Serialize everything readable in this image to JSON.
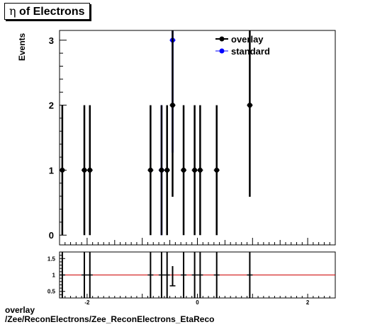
{
  "title": {
    "prefix": "η",
    "text": " of Electrons"
  },
  "y_axis_label": "Events",
  "footer": {
    "line1": "overlay",
    "line2": "/Zee/ReconElectrons/Zee_ReconElectrons_EtaReco"
  },
  "colors": {
    "overlay": "#000000",
    "standard": "#0000ff",
    "ratio_line": "#cc0000"
  },
  "chart_data": [
    {
      "type": "scatter",
      "xlabel": "",
      "ylabel": "Events",
      "xlim": [
        -2.5,
        2.5
      ],
      "ylim": [
        -0.15,
        3.15
      ],
      "x_ticks": [],
      "y_ticks": [
        "0",
        "1",
        "2",
        "3"
      ],
      "legend": {
        "placement": "top-right",
        "entries": [
          "overlay",
          "standard"
        ]
      },
      "series": [
        {
          "name": "overlay",
          "x": [
            -2.45,
            -2.05,
            -1.95,
            -0.85,
            -0.65,
            -0.55,
            -0.45,
            -0.25,
            -0.05,
            0.05,
            0.35,
            0.95
          ],
          "y": [
            1,
            1,
            1,
            1,
            1,
            1,
            2,
            1,
            1,
            1,
            1,
            2
          ],
          "err": [
            1,
            1,
            1,
            1,
            1,
            1,
            1.41,
            1,
            1,
            1,
            1,
            1.41
          ]
        },
        {
          "name": "standard",
          "x": [
            -0.65,
            -0.45
          ],
          "y": [
            1,
            3
          ],
          "err": [
            1,
            1.73
          ]
        }
      ]
    },
    {
      "type": "scatter",
      "xlabel": "",
      "ylabel": "",
      "xlim": [
        -2.5,
        2.5
      ],
      "ylim": [
        0.3,
        1.7
      ],
      "x_ticks": [
        "-2",
        "0",
        "2"
      ],
      "y_ticks": [
        "0.5",
        "1",
        "1.5"
      ],
      "reference_line": 1,
      "series": [
        {
          "name": "",
          "x": [
            -2.45,
            -2.05,
            -1.95,
            -0.85,
            -0.65,
            -0.55,
            -0.45,
            -0.25,
            -0.05,
            0.05,
            0.35,
            0.95
          ],
          "y": [
            1,
            1,
            1,
            1,
            1,
            1,
            0.67,
            1,
            1,
            1,
            1,
            1
          ],
          "err_low": [
            0.7,
            0.7,
            0.7,
            0.7,
            0.7,
            0.7,
            0.0,
            0.7,
            0.7,
            0.7,
            0.7,
            0.7
          ],
          "err_high": [
            0.7,
            0.7,
            0.7,
            0.7,
            0.7,
            0.7,
            0.6,
            0.7,
            0.7,
            0.7,
            0.7,
            0.7
          ]
        }
      ]
    }
  ]
}
